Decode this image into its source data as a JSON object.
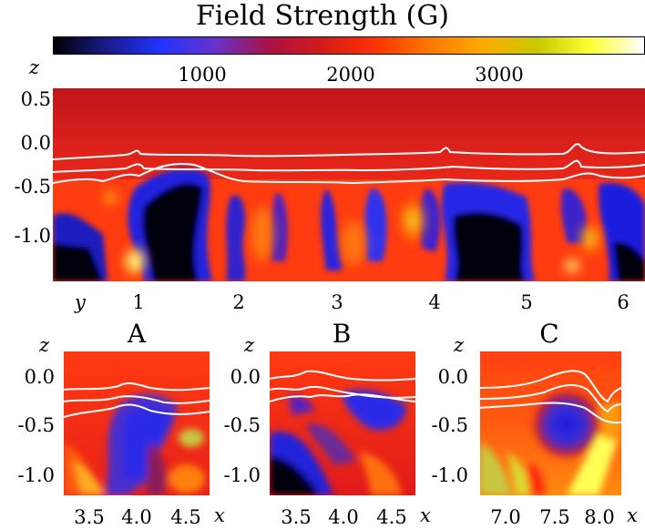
{
  "figure": {
    "colorbar": {
      "title": "Field Strength (G)",
      "ticks": [
        {
          "label": "1000",
          "value": 1000
        },
        {
          "label": "2000",
          "value": 2000
        },
        {
          "label": "3000",
          "value": 3000
        }
      ],
      "range": [
        0,
        3800
      ],
      "colors": [
        "#000000",
        "#1a1a8c",
        "#2233ff",
        "#6633cc",
        "#aa1144",
        "#d41a1a",
        "#ff3300",
        "#ff7700",
        "#ffaa00",
        "#c8c800",
        "#ffff33",
        "#ffffff"
      ]
    },
    "main_panel": {
      "ylabel": "z",
      "xlabel": "y",
      "yticks": [
        "0.5",
        "0.0",
        "-0.5",
        "-1.0"
      ],
      "xticks": [
        "1",
        "2",
        "3",
        "4",
        "5",
        "6"
      ]
    },
    "subpanels": [
      {
        "title": "A",
        "ylabel": "z",
        "yticks": [
          "0.0",
          "-0.5",
          "-1.0"
        ],
        "xticks": [
          "3.5",
          "4.0",
          "4.5"
        ],
        "xlabel": "x"
      },
      {
        "title": "B",
        "ylabel": "z",
        "yticks": [
          "0.0",
          "-0.5",
          "-1.0"
        ],
        "xticks": [
          "3.5",
          "4.0",
          "4.5"
        ],
        "xlabel": "x"
      },
      {
        "title": "C",
        "ylabel": "z",
        "yticks": [
          "0.0",
          "-0.5",
          "-1.0"
        ],
        "xticks": [
          "7.0",
          "7.5",
          "8.0"
        ],
        "xlabel": "x"
      }
    ]
  }
}
